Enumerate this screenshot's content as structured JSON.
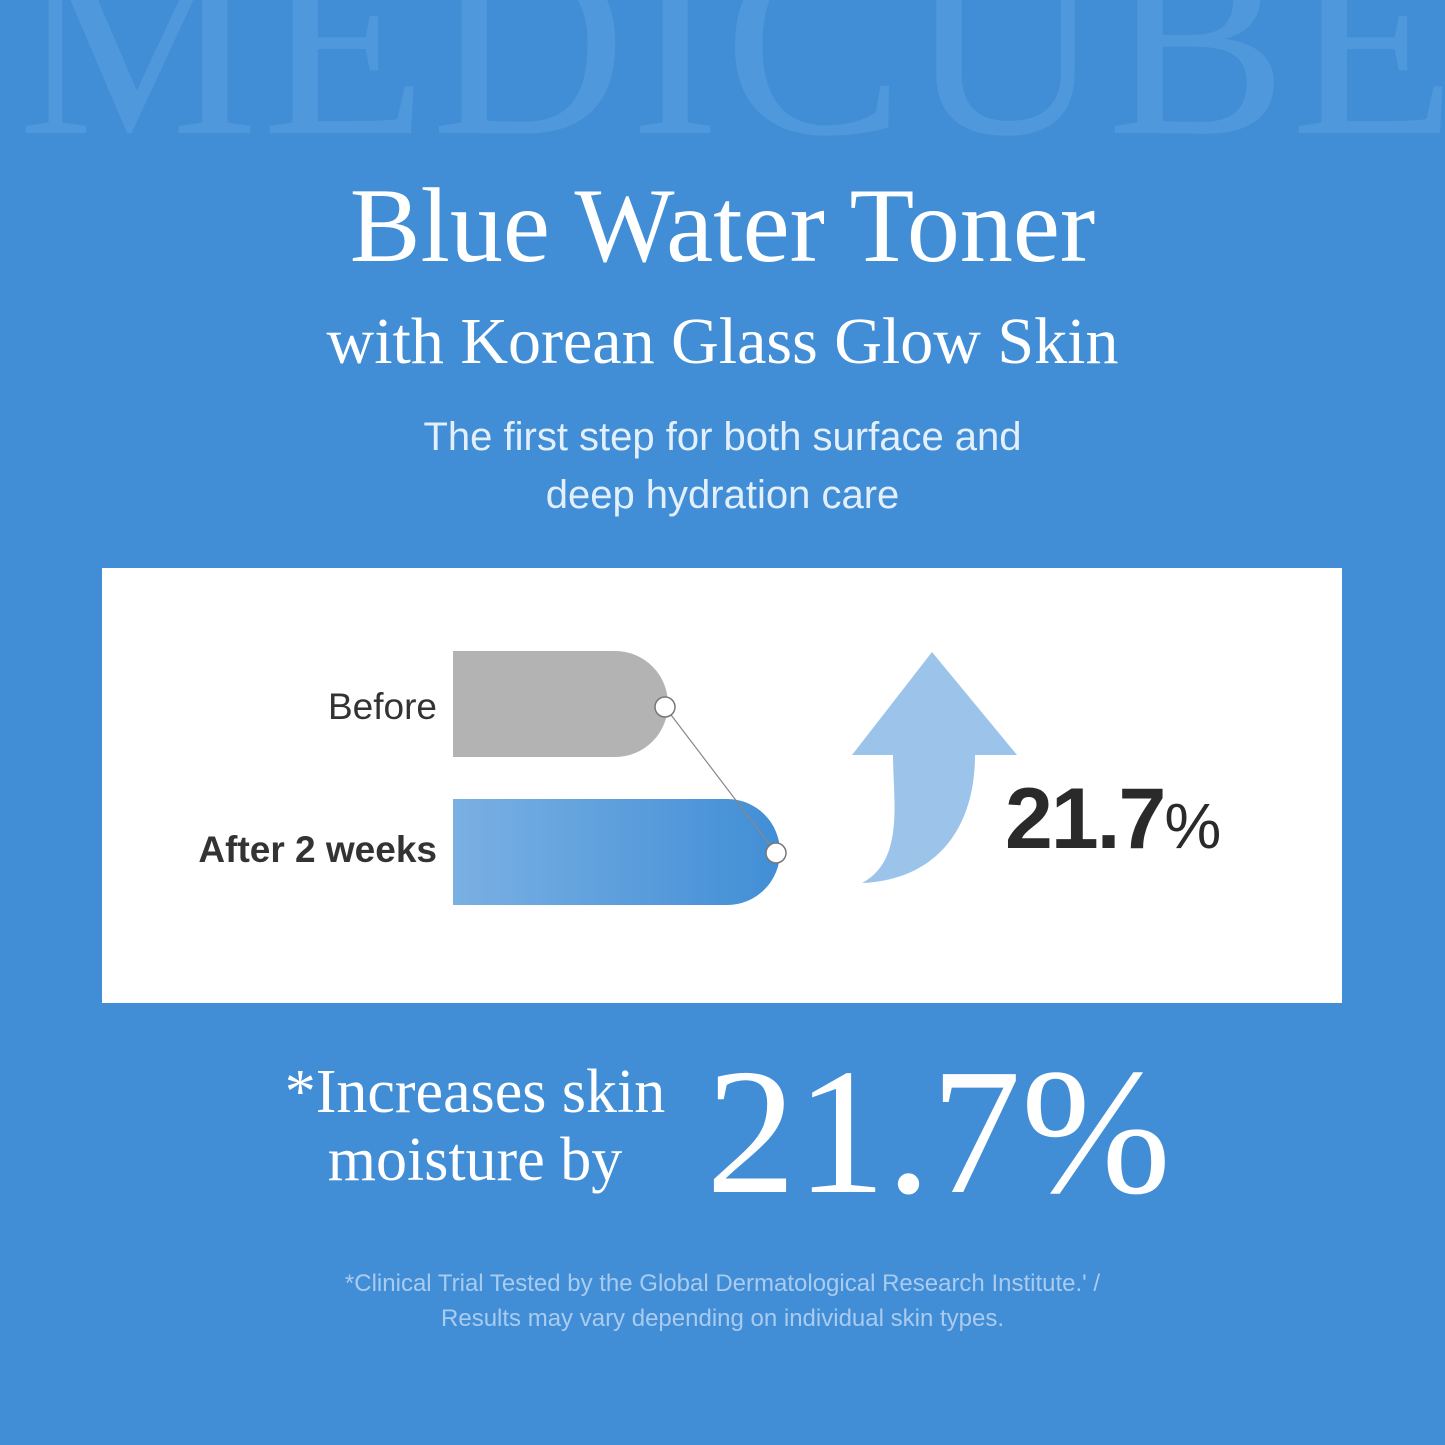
{
  "watermark": "MEDICUBE",
  "title": "Blue Water Toner",
  "subtitle": "with Korean Glass Glow Skin",
  "tagline": [
    "The first step for both surface and",
    "deep hydration care"
  ],
  "comparison": {
    "before_label": "Before",
    "after_label": "After 2 weeks",
    "increase_percent": "21.7",
    "percent_sign": "%",
    "colors": {
      "before": "#b3b3b3",
      "after_start": "#7ab0e3",
      "after_end": "#418ed6",
      "arrow": "#9cc4ea"
    }
  },
  "claim": {
    "line1": "*Increases skin",
    "line2": "moisture by",
    "value": "21.7%"
  },
  "footnote": [
    "*Clinical Trial Tested by the Global Dermatological Research Institute.' /",
    "Results may vary depending on individual skin types."
  ],
  "colors": {
    "background": "#418ed6"
  }
}
